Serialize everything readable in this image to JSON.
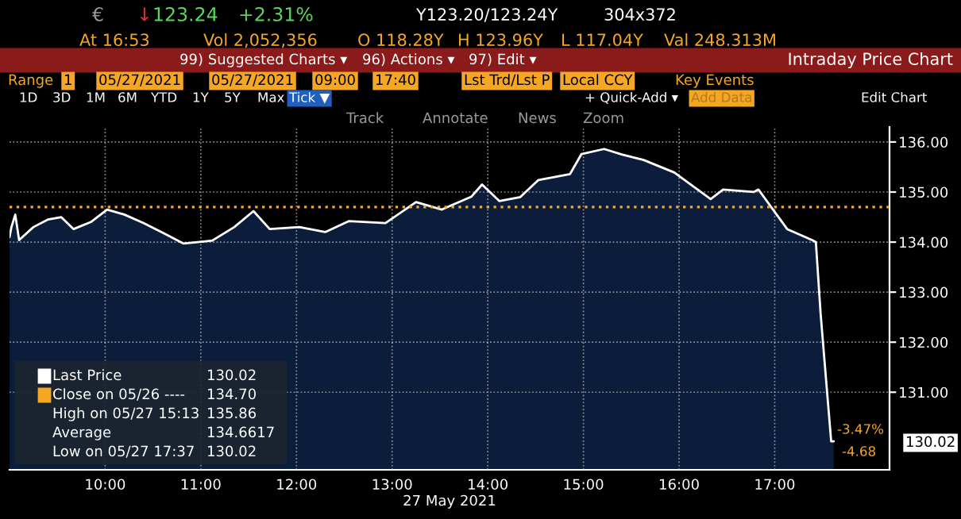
{
  "chart_data": {
    "type": "area",
    "title": "Intraday Price Chart",
    "xlabel": "27 May 2021",
    "x": [
      9.0,
      9.02,
      9.06,
      9.1,
      9.25,
      9.4,
      9.54,
      9.67,
      9.85,
      10.02,
      10.2,
      10.4,
      10.63,
      10.82,
      11.12,
      11.35,
      11.55,
      11.72,
      12.03,
      12.3,
      12.55,
      12.93,
      13.25,
      13.52,
      13.83,
      13.94,
      14.12,
      14.34,
      14.53,
      14.86,
      14.98,
      15.217,
      15.4,
      15.63,
      15.95,
      16.33,
      16.46,
      16.78,
      16.83,
      16.97,
      17.13,
      17.39,
      17.43,
      17.48,
      17.59,
      17.617
    ],
    "series": [
      {
        "color": "#ffffff",
        "values": [
          134.1,
          134.3,
          134.55,
          134.04,
          134.3,
          134.45,
          134.5,
          134.26,
          134.4,
          134.65,
          134.55,
          134.38,
          134.16,
          133.97,
          134.03,
          134.3,
          134.62,
          134.26,
          134.3,
          134.2,
          134.42,
          134.38,
          134.8,
          134.65,
          134.91,
          135.15,
          134.82,
          134.9,
          135.24,
          135.36,
          135.76,
          135.86,
          135.75,
          135.64,
          135.39,
          134.86,
          135.05,
          135.0,
          135.05,
          134.68,
          134.26,
          134.04,
          134.0,
          132.56,
          130.02,
          130.02
        ]
      }
    ],
    "xlim": [
      9.0,
      18.2
    ],
    "ylim": [
      129.45,
      136.3
    ],
    "xticks": [
      {
        "value": 10,
        "label": "10:00"
      },
      {
        "value": 11,
        "label": "11:00"
      },
      {
        "value": 12,
        "label": "12:00"
      },
      {
        "value": 13,
        "label": "13:00"
      },
      {
        "value": 14,
        "label": "14:00"
      },
      {
        "value": 15,
        "label": "15:00"
      },
      {
        "value": 16,
        "label": "16:00"
      },
      {
        "value": 17,
        "label": "17:00"
      }
    ],
    "yticks": [
      {
        "value": 131,
        "label": "131.00"
      },
      {
        "value": 132,
        "label": "132.00"
      },
      {
        "value": 133,
        "label": "133.00"
      },
      {
        "value": 134,
        "label": "134.00"
      },
      {
        "value": 135,
        "label": "135.00"
      },
      {
        "value": 136,
        "label": "136.00"
      }
    ],
    "ref_lines": [
      {
        "axis": "y",
        "value": 134.7,
        "color": "#f5a623",
        "line_style": "dotted"
      }
    ],
    "grid": true,
    "line_style": "solid",
    "marker": "none",
    "annotations": [
      "€",
      "↓",
      "123.24",
      "+2.31%",
      "Y123.20/123.24Y",
      "304x372",
      "At 16:53",
      "Vol 2,052,356",
      "O 118.28Y",
      "H 123.96Y",
      "L 117.04Y",
      "Val 248.313M",
      "99) Suggested Charts ▾",
      "96) Actions ▾",
      "97) Edit ▾",
      "Range",
      "1",
      "05/27/2021",
      "05/27/2021",
      "09:00",
      "17:40",
      "Lst Trd/Lst P",
      "Local CCY",
      "Key Events",
      "1D",
      "3D",
      "1M",
      "6M",
      "YTD",
      "1Y",
      "5Y",
      "Max",
      "Tick ▼",
      "+ Quick-Add ▾",
      "Add Data",
      "Edit Chart",
      "Track",
      "Annotate",
      "News",
      "Zoom",
      "Last Price",
      "130.02",
      "Close on 05/26 ----",
      "134.70",
      "High on 05/27 15:13",
      "135.86",
      "Average",
      "134.6617",
      "Low on 05/27 17:37",
      "130.02",
      "-3.47%",
      "-4.68",
      "130.02"
    ]
  }
}
